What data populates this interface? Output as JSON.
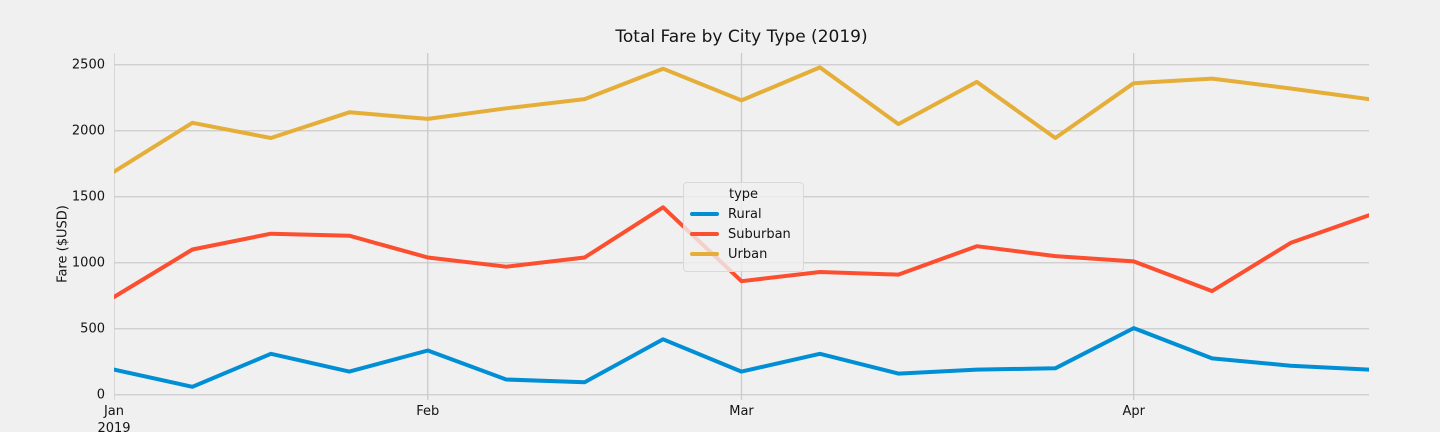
{
  "title": "Total Fare by City Type (2019)",
  "ylabel": "Fare ($USD)",
  "legend": {
    "title": "type"
  },
  "chart_data": {
    "type": "line",
    "title": "Total Fare by City Type (2019)",
    "xlabel": "",
    "ylabel": "Fare ($USD)",
    "x_description": "17 weekly points, January through April 2019",
    "x": [
      0,
      1,
      2,
      3,
      4,
      5,
      6,
      7,
      8,
      9,
      10,
      11,
      12,
      13,
      14,
      15,
      16
    ],
    "xticks": [
      {
        "index": 0,
        "label": "Jan",
        "sublabel": "2019"
      },
      {
        "index": 4,
        "label": "Feb",
        "sublabel": ""
      },
      {
        "index": 8,
        "label": "Mar",
        "sublabel": ""
      },
      {
        "index": 13,
        "label": "Apr",
        "sublabel": ""
      }
    ],
    "yticks": [
      0,
      500,
      1000,
      1500,
      2000,
      2500
    ],
    "ylim": [
      -40,
      2589
    ],
    "grid": true,
    "legend_position": "center",
    "background_color": "#f0f0f0",
    "grid_color": "#cbcbcb",
    "series": [
      {
        "name": "Rural",
        "color": "#008fd5",
        "values": [
          190,
          60,
          310,
          175,
          335,
          115,
          95,
          420,
          175,
          310,
          160,
          190,
          200,
          505,
          275,
          220,
          190
        ]
      },
      {
        "name": "Suburban",
        "color": "#fc4f30",
        "values": [
          740,
          1100,
          1220,
          1205,
          1040,
          970,
          1040,
          1420,
          860,
          930,
          910,
          1125,
          1050,
          1010,
          785,
          1150,
          1360
        ]
      },
      {
        "name": "Urban",
        "color": "#e5ae38",
        "values": [
          1690,
          2060,
          1945,
          2140,
          2090,
          2170,
          2240,
          2470,
          2230,
          2480,
          2050,
          2370,
          1945,
          2360,
          2395,
          2320,
          2240
        ]
      }
    ]
  }
}
